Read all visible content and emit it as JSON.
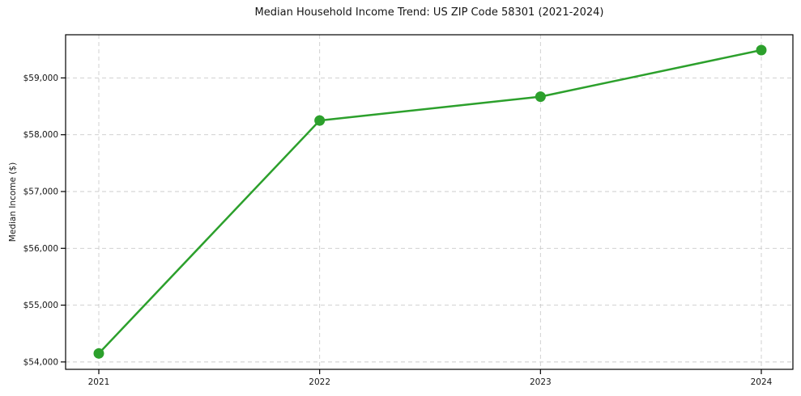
{
  "chart_data": {
    "type": "line",
    "title": "Median Household Income Trend: US ZIP Code 58301 (2021-2024)",
    "xlabel": "",
    "ylabel": "Median Income ($)",
    "x": [
      2021,
      2022,
      2023,
      2024
    ],
    "x_tick_labels": [
      "2021",
      "2022",
      "2023",
      "2024"
    ],
    "series": [
      {
        "name": "Median Household Income",
        "values": [
          54150,
          58250,
          58670,
          59490
        ]
      }
    ],
    "y_ticks": [
      54000,
      55000,
      56000,
      57000,
      58000,
      59000
    ],
    "y_tick_labels": [
      "$54,000",
      "$55,000",
      "$56,000",
      "$57,000",
      "$58,000",
      "$59,000"
    ],
    "ylim": [
      53870,
      59760
    ],
    "grid": true,
    "grid_style": "dashed",
    "legend": false,
    "colors": {
      "line": "#2ca02c",
      "marker": "#2ca02c",
      "grid": "#cccccc",
      "axis": "#000000",
      "text": "#151515",
      "background": "#ffffff"
    }
  }
}
